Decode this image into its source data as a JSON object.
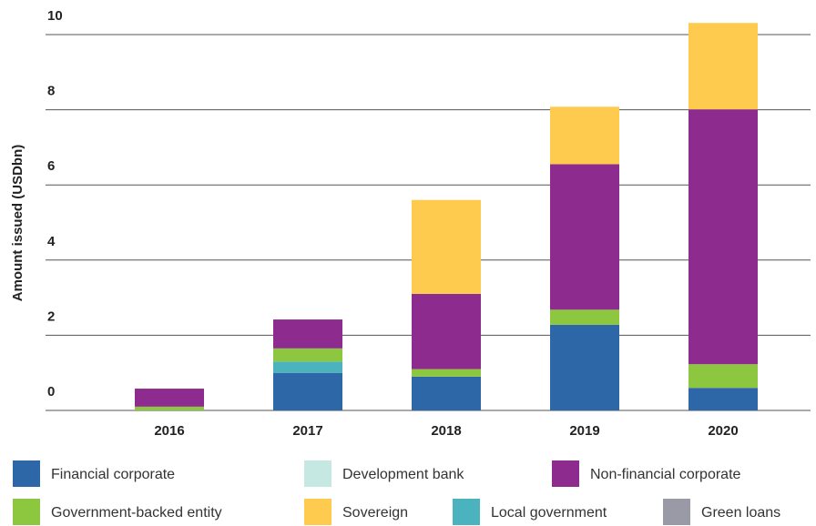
{
  "chart_data": {
    "type": "stacked_bar",
    "y_label": "Amount issued (USDbn)",
    "categories": [
      "2016",
      "2017",
      "2018",
      "2019",
      "2020"
    ],
    "series": [
      {
        "name": "Financial corporate",
        "color": "#2e67a8",
        "values": [
          0,
          1.0,
          0.9,
          2.28,
          0.6
        ]
      },
      {
        "name": "Development bank",
        "color": "#c5e8e3",
        "values": [
          0,
          0,
          0,
          0,
          0
        ]
      },
      {
        "name": "Non-financial corporate",
        "color": "#8e2b8e",
        "values": [
          0.48,
          0.77,
          2.0,
          3.87,
          6.78
        ]
      },
      {
        "name": "Government-backed entity",
        "color": "#8dc63f",
        "values": [
          0.1,
          0.35,
          0.2,
          0.4,
          0.63
        ]
      },
      {
        "name": "Sovereign",
        "color": "#fecb4e",
        "values": [
          0,
          0,
          2.5,
          1.53,
          2.3
        ]
      },
      {
        "name": "Local government",
        "color": "#4bb3bd",
        "values": [
          0,
          0.3,
          0,
          0,
          0
        ]
      },
      {
        "name": "Green loans",
        "color": "#9a9aa6",
        "values": [
          0,
          0,
          0,
          0,
          0
        ]
      }
    ],
    "ylim": [
      0,
      10
    ],
    "yticks": [
      0,
      2,
      4,
      6,
      8,
      10
    ],
    "grid": true
  }
}
